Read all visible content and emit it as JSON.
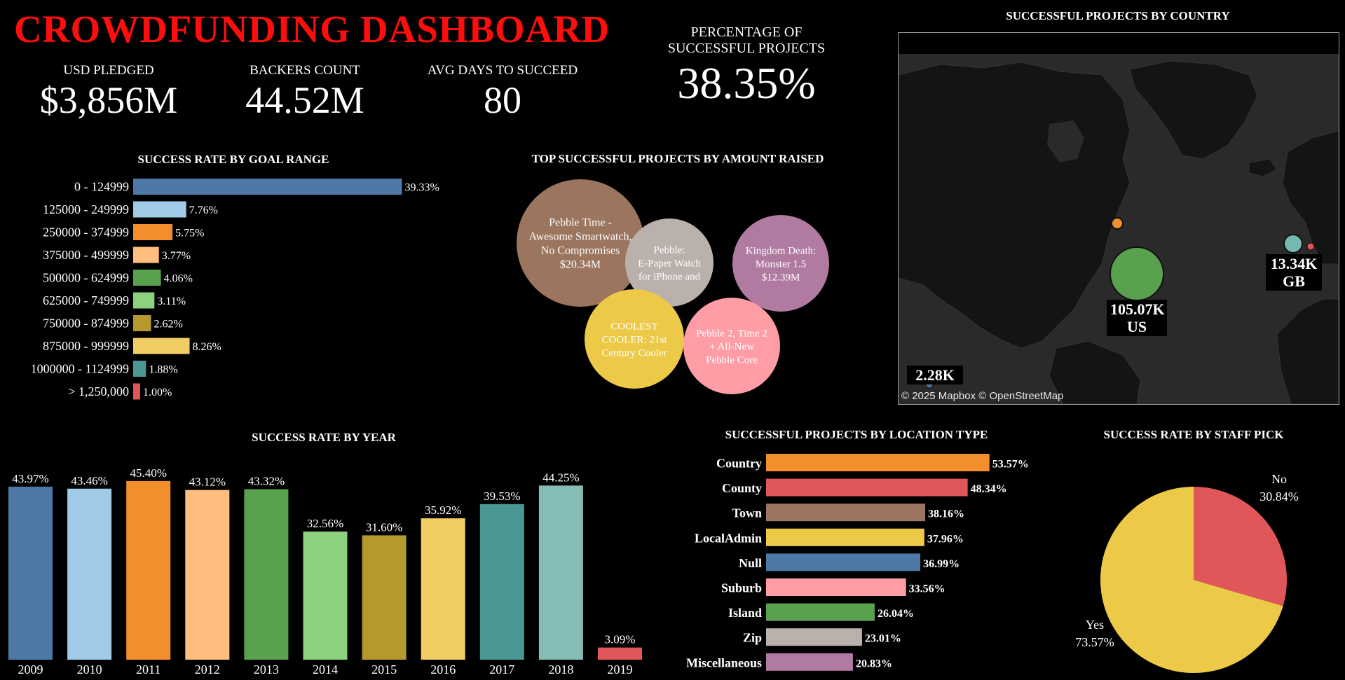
{
  "dashboard": {
    "title": "CROWDFUNDING DASHBOARD"
  },
  "kpis": {
    "usd_pledged": {
      "label": "USD PLEDGED",
      "value": "$3,856M"
    },
    "backers_count": {
      "label": "BACKERS COUNT",
      "value": "44.52M"
    },
    "avg_days": {
      "label": "AVG DAYS TO SUCCEED",
      "value": "80"
    },
    "pct_success": {
      "label_line1": "PERCENTAGE OF",
      "label_line2": "SUCCESSFUL PROJECTS",
      "value": "38.35%"
    }
  },
  "map_panel": {
    "title": "SUCCESSFUL PROJECTS BY COUNTRY",
    "credit": "© 2025 Mapbox © OpenStreetMap",
    "us_value": "105.07K",
    "us_code": "US",
    "gb_value": "13.34K",
    "gb_code": "GB",
    "other_value": "2.28K"
  },
  "chart_data": [
    {
      "id": "goal_range",
      "type": "bar",
      "orientation": "horizontal",
      "title": "SUCCESS RATE BY GOAL RANGE",
      "categories": [
        "0 - 124999",
        "125000 - 249999",
        "250000 - 374999",
        "375000 - 499999",
        "500000 - 624999",
        "625000 - 749999",
        "750000 - 874999",
        "875000 - 999999",
        "1000000 - 1124999",
        "> 1,250,000"
      ],
      "values": [
        39.33,
        7.76,
        5.75,
        3.77,
        4.06,
        3.11,
        2.62,
        8.26,
        1.88,
        1.0
      ],
      "labels": [
        "39.33%",
        "7.76%",
        "5.75%",
        "3.77%",
        "4.06%",
        "3.11%",
        "2.62%",
        "8.26%",
        "1.88%",
        "1.00%"
      ],
      "colors": [
        "#4e79a7",
        "#a0cbe8",
        "#f28e2b",
        "#ffbe7d",
        "#59a14f",
        "#8cd17d",
        "#b6992d",
        "#f1ce63",
        "#499894",
        "#e15759"
      ]
    },
    {
      "id": "top_projects",
      "type": "bubble",
      "title": "TOP  SUCCESSFUL PROJECTS BY AMOUNT RAISED",
      "items": [
        {
          "lines": [
            "Pebble Time -",
            "Awesome Smartwatch,",
            "No Compromises",
            "$20.34M"
          ],
          "value": 20.34,
          "color": "#9c755f"
        },
        {
          "lines": [
            "Pebble:",
            "E-Paper Watch",
            "for iPhone and"
          ],
          "color": "#bab0ac"
        },
        {
          "lines": [
            "Kingdom Death:",
            "Monster 1.5",
            "$12.39M"
          ],
          "value": 12.39,
          "color": "#b07aa1"
        },
        {
          "lines": [
            "COOLEST",
            "COOLER: 21st",
            "Century Cooler"
          ],
          "color": "#edc948"
        },
        {
          "lines": [
            "Pebble 2, Time 2",
            "+ All-New",
            "Pebble Core"
          ],
          "color": "#ff9da7"
        }
      ]
    },
    {
      "id": "by_year",
      "type": "bar",
      "orientation": "vertical",
      "title": "SUCCESS RATE BY YEAR",
      "categories": [
        "2009",
        "2010",
        "2011",
        "2012",
        "2013",
        "2014",
        "2015",
        "2016",
        "2017",
        "2018",
        "2019"
      ],
      "values": [
        43.97,
        43.46,
        45.4,
        43.12,
        43.32,
        32.56,
        31.6,
        35.92,
        39.53,
        44.25,
        3.09
      ],
      "labels": [
        "43.97%",
        "43.46%",
        "45.40%",
        "43.12%",
        "43.32%",
        "32.56%",
        "31.60%",
        "35.92%",
        "39.53%",
        "44.25%",
        "3.09%"
      ],
      "colors": [
        "#4e79a7",
        "#a0cbe8",
        "#f28e2b",
        "#ffbe7d",
        "#59a14f",
        "#8cd17d",
        "#b6992d",
        "#f1ce63",
        "#499894",
        "#86bcb6",
        "#e15759"
      ]
    },
    {
      "id": "location_type",
      "type": "bar",
      "orientation": "horizontal",
      "title": "SUCCESSFUL PROJECTS BY LOCATION TYPE",
      "categories": [
        "Country",
        "County",
        "Town",
        "LocalAdmin",
        "Null",
        "Suburb",
        "Island",
        "Zip",
        "Miscellaneous"
      ],
      "values": [
        53.57,
        48.34,
        38.16,
        37.96,
        36.99,
        33.56,
        26.04,
        23.01,
        20.83
      ],
      "labels": [
        "53.57%",
        "48.34%",
        "38.16%",
        "37.96%",
        "36.99%",
        "33.56%",
        "26.04%",
        "23.01%",
        "20.83%"
      ],
      "colors": [
        "#f28e2b",
        "#e15759",
        "#9c755f",
        "#edc948",
        "#4e79a7",
        "#ff9da7",
        "#59a14f",
        "#bab0ac",
        "#b07aa1"
      ]
    },
    {
      "id": "staff_pick",
      "type": "pie",
      "title": "SUCCESS RATE BY STAFF PICK",
      "categories": [
        "No",
        "Yes"
      ],
      "values": [
        30.84,
        73.57
      ],
      "labels": [
        "30.84%",
        "73.57%"
      ],
      "colors": [
        "#e15759",
        "#edc948"
      ]
    }
  ]
}
